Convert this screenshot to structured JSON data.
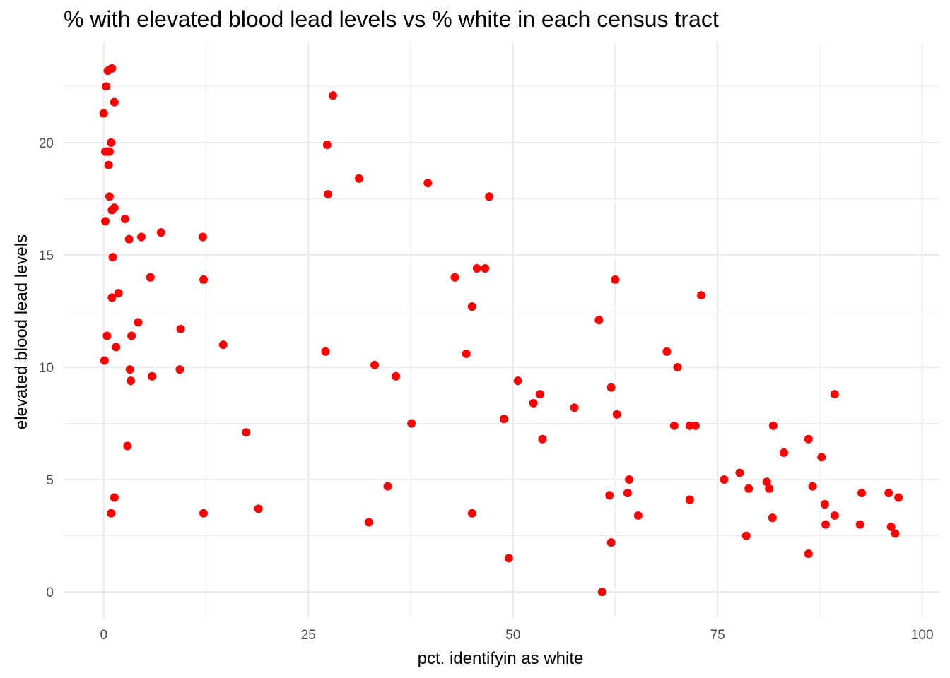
{
  "chart_data": {
    "type": "scatter",
    "title": "% with elevated blood lead levels vs % white in each census tract",
    "xlabel": "pct. identifyin as white",
    "ylabel": "elevated blood lead levels",
    "xlim": [
      -4.9,
      102.1
    ],
    "ylim": [
      -1.16,
      24.46
    ],
    "x_ticks": [
      0,
      25,
      50,
      75,
      100
    ],
    "x_tick_labels": [
      "0",
      "25",
      "50",
      "75",
      "100"
    ],
    "y_ticks": [
      0,
      5,
      10,
      15,
      20
    ],
    "y_tick_labels": [
      "0",
      "5",
      "10",
      "15",
      "20"
    ],
    "grid": true,
    "point_color": "#ff0000",
    "points": [
      [
        0.5,
        23.2
      ],
      [
        1.0,
        23.3
      ],
      [
        0.3,
        22.5
      ],
      [
        1.3,
        21.8
      ],
      [
        0.0,
        21.3
      ],
      [
        0.2,
        19.6
      ],
      [
        0.5,
        19.6
      ],
      [
        0.9,
        20.0
      ],
      [
        0.7,
        19.6
      ],
      [
        0.6,
        19.0
      ],
      [
        0.7,
        17.6
      ],
      [
        1.3,
        17.1
      ],
      [
        1.0,
        17.0
      ],
      [
        0.2,
        16.5
      ],
      [
        2.6,
        16.6
      ],
      [
        3.1,
        15.7
      ],
      [
        4.6,
        15.8
      ],
      [
        7.0,
        16.0
      ],
      [
        12.1,
        15.8
      ],
      [
        1.1,
        14.9
      ],
      [
        1.0,
        13.1
      ],
      [
        1.8,
        13.3
      ],
      [
        5.7,
        14.0
      ],
      [
        12.2,
        13.9
      ],
      [
        0.4,
        11.4
      ],
      [
        4.2,
        12.0
      ],
      [
        3.4,
        11.4
      ],
      [
        9.4,
        11.7
      ],
      [
        14.6,
        11.0
      ],
      [
        1.5,
        10.9
      ],
      [
        0.1,
        10.3
      ],
      [
        3.2,
        9.9
      ],
      [
        3.3,
        9.4
      ],
      [
        5.9,
        9.6
      ],
      [
        9.3,
        9.9
      ],
      [
        2.9,
        6.5
      ],
      [
        17.4,
        7.1
      ],
      [
        1.3,
        4.2
      ],
      [
        0.9,
        3.5
      ],
      [
        12.2,
        3.5
      ],
      [
        18.9,
        3.7
      ],
      [
        28.0,
        22.1
      ],
      [
        27.3,
        19.9
      ],
      [
        27.4,
        17.7
      ],
      [
        31.2,
        18.4
      ],
      [
        39.6,
        18.2
      ],
      [
        47.1,
        17.6
      ],
      [
        42.9,
        14.0
      ],
      [
        45.6,
        14.4
      ],
      [
        46.6,
        14.4
      ],
      [
        45.0,
        12.7
      ],
      [
        44.3,
        10.6
      ],
      [
        27.1,
        10.7
      ],
      [
        33.1,
        10.1
      ],
      [
        35.7,
        9.6
      ],
      [
        37.6,
        7.5
      ],
      [
        34.7,
        4.7
      ],
      [
        32.4,
        3.1
      ],
      [
        45.0,
        3.5
      ],
      [
        48.9,
        7.7
      ],
      [
        50.6,
        9.4
      ],
      [
        52.5,
        8.4
      ],
      [
        53.3,
        8.8
      ],
      [
        53.6,
        6.8
      ],
      [
        57.5,
        8.2
      ],
      [
        60.5,
        12.1
      ],
      [
        62.5,
        13.9
      ],
      [
        62.0,
        9.1
      ],
      [
        62.7,
        7.9
      ],
      [
        68.8,
        10.7
      ],
      [
        70.1,
        10.0
      ],
      [
        69.7,
        7.4
      ],
      [
        71.6,
        7.4
      ],
      [
        72.3,
        7.4
      ],
      [
        73.0,
        13.2
      ],
      [
        64.2,
        5.0
      ],
      [
        64.0,
        4.4
      ],
      [
        61.8,
        4.3
      ],
      [
        65.3,
        3.4
      ],
      [
        62.0,
        2.2
      ],
      [
        49.5,
        1.5
      ],
      [
        60.9,
        0.0
      ],
      [
        71.6,
        4.1
      ],
      [
        75.8,
        5.0
      ],
      [
        77.7,
        5.3
      ],
      [
        78.8,
        4.6
      ],
      [
        78.5,
        2.5
      ],
      [
        81.0,
        4.9
      ],
      [
        81.3,
        4.6
      ],
      [
        81.7,
        3.3
      ],
      [
        81.8,
        7.4
      ],
      [
        83.1,
        6.2
      ],
      [
        86.1,
        6.8
      ],
      [
        86.6,
        4.7
      ],
      [
        87.7,
        6.0
      ],
      [
        88.1,
        3.9
      ],
      [
        88.2,
        3.0
      ],
      [
        89.3,
        3.4
      ],
      [
        89.3,
        8.8
      ],
      [
        86.1,
        1.7
      ],
      [
        92.4,
        3.0
      ],
      [
        92.6,
        4.4
      ],
      [
        95.9,
        4.4
      ],
      [
        96.2,
        2.9
      ],
      [
        96.7,
        2.6
      ],
      [
        97.1,
        4.2
      ]
    ]
  }
}
